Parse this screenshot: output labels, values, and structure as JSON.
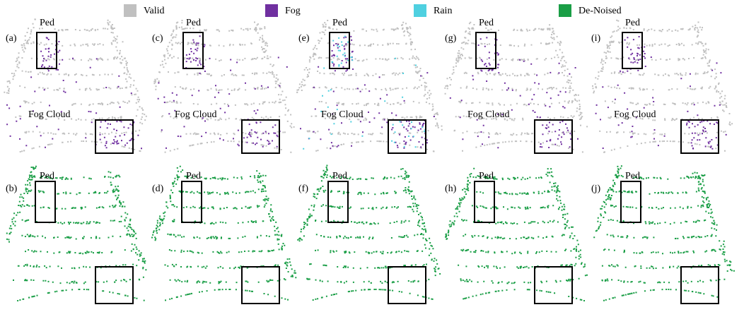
{
  "legend": [
    {
      "label": "Valid",
      "color": "#c0c0c0"
    },
    {
      "label": "Fog",
      "color": "#7030a0"
    },
    {
      "label": "Rain",
      "color": "#4fd0e0"
    },
    {
      "label": "De-Noised",
      "color": "#1a9e46"
    }
  ],
  "top_panels": [
    {
      "label": "(a)",
      "ped": "Ped",
      "cloud": "Fog Cloud"
    },
    {
      "label": "(c)",
      "ped": "Ped",
      "cloud": "Fog Cloud"
    },
    {
      "label": "(e)",
      "ped": "Ped",
      "cloud": "Fog Cloud"
    },
    {
      "label": "(g)",
      "ped": "Ped",
      "cloud": "Fog Cloud"
    },
    {
      "label": "(i)",
      "ped": "Ped",
      "cloud": "Fog Cloud"
    }
  ],
  "bottom_panels": [
    {
      "label": "(b)",
      "ped": "Ped"
    },
    {
      "label": "(d)",
      "ped": "Ped"
    },
    {
      "label": "(f)",
      "ped": "Ped"
    },
    {
      "label": "(h)",
      "ped": "Ped"
    },
    {
      "label": "(j)",
      "ped": "Ped"
    }
  ]
}
